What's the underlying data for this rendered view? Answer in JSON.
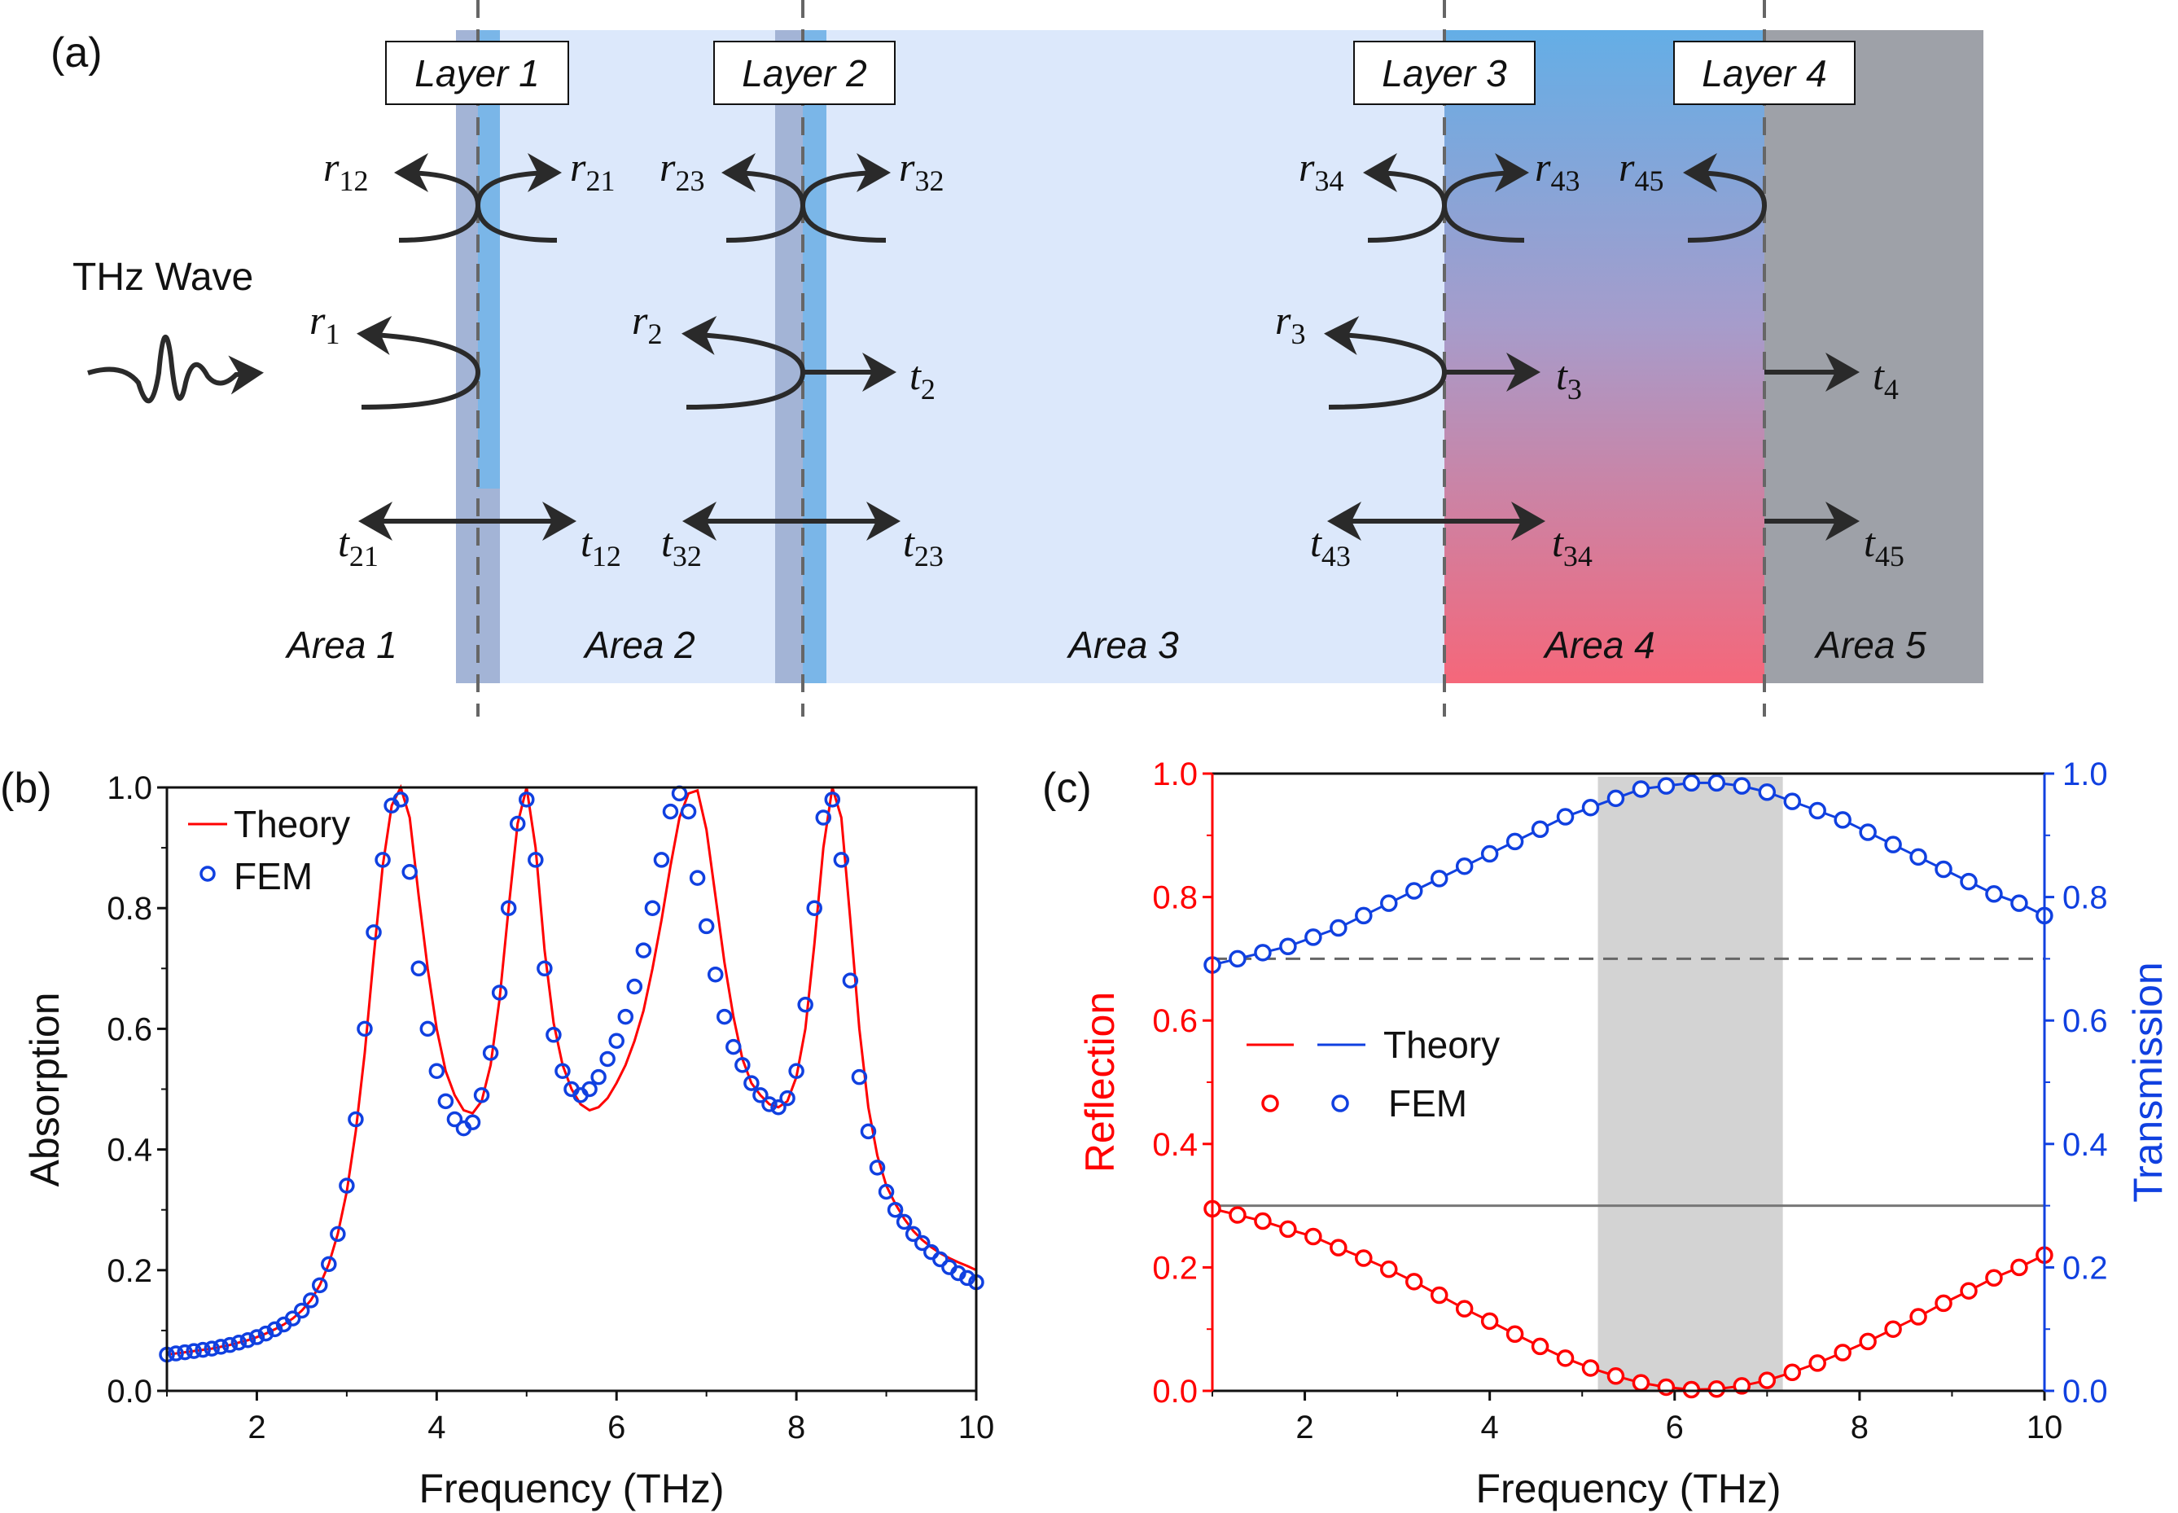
{
  "panel_a": {
    "label": "(a)",
    "wave_label": "THz Wave",
    "layers": [
      "Layer 1",
      "Layer 2",
      "Layer 3",
      "Layer 4"
    ],
    "areas": [
      "Area 1",
      "Area 2",
      "Area 3",
      "Area 4",
      "Area 5"
    ],
    "symbols": [
      {
        "b": "r",
        "s": "12"
      },
      {
        "b": "r",
        "s": "21"
      },
      {
        "b": "r",
        "s": "23"
      },
      {
        "b": "r",
        "s": "32"
      },
      {
        "b": "r",
        "s": "34"
      },
      {
        "b": "r",
        "s": "43"
      },
      {
        "b": "r",
        "s": "45"
      },
      {
        "b": "r",
        "s": "1"
      },
      {
        "b": "r",
        "s": "2"
      },
      {
        "b": "r",
        "s": "3"
      },
      {
        "b": "t",
        "s": "2"
      },
      {
        "b": "t",
        "s": "3"
      },
      {
        "b": "t",
        "s": "4"
      },
      {
        "b": "t",
        "s": "21"
      },
      {
        "b": "t",
        "s": "12"
      },
      {
        "b": "t",
        "s": "32"
      },
      {
        "b": "t",
        "s": "23"
      },
      {
        "b": "t",
        "s": "43"
      },
      {
        "b": "t",
        "s": "34"
      },
      {
        "b": "t",
        "s": "45"
      }
    ],
    "colors": {
      "area3": "#dce8fb",
      "area4_top": "#64aee6",
      "area4_bottom": "#f5677a",
      "area5": "#9ea1a8",
      "layer_gray": "#a3b4d6",
      "layer_blue": "#7ab6e8"
    }
  },
  "chart_data": [
    {
      "panel": "(b)",
      "type": "line",
      "xlabel": "Frequency (THz)",
      "ylabel": "Absorption",
      "xlim": [
        1,
        10
      ],
      "ylim": [
        0,
        1.0
      ],
      "xticks": [
        "2",
        "4",
        "6",
        "8",
        "10"
      ],
      "yticks": [
        "0.0",
        "0.2",
        "0.4",
        "0.6",
        "0.8",
        "1.0"
      ],
      "legend": "top-left",
      "x": [
        1.0,
        1.1,
        1.2,
        1.3,
        1.4,
        1.5,
        1.6,
        1.7,
        1.8,
        1.9,
        2.0,
        2.1,
        2.2,
        2.3,
        2.4,
        2.5,
        2.6,
        2.7,
        2.8,
        2.9,
        3.0,
        3.1,
        3.2,
        3.3,
        3.4,
        3.5,
        3.6,
        3.7,
        3.8,
        3.9,
        4.0,
        4.1,
        4.2,
        4.3,
        4.4,
        4.5,
        4.6,
        4.7,
        4.8,
        4.9,
        5.0,
        5.1,
        5.2,
        5.3,
        5.4,
        5.5,
        5.6,
        5.7,
        5.8,
        5.9,
        6.0,
        6.1,
        6.2,
        6.3,
        6.4,
        6.5,
        6.6,
        6.7,
        6.8,
        6.9,
        7.0,
        7.1,
        7.2,
        7.3,
        7.4,
        7.5,
        7.6,
        7.7,
        7.8,
        7.9,
        8.0,
        8.1,
        8.2,
        8.3,
        8.4,
        8.5,
        8.6,
        8.7,
        8.8,
        8.9,
        9.0,
        9.1,
        9.2,
        9.3,
        9.4,
        9.5,
        9.6,
        9.7,
        9.8,
        9.9,
        10.0
      ],
      "series": [
        {
          "name": "Theory",
          "style": "line",
          "color": "#ff0000",
          "values": [
            0.06,
            0.062,
            0.064,
            0.066,
            0.068,
            0.07,
            0.073,
            0.076,
            0.08,
            0.084,
            0.089,
            0.095,
            0.102,
            0.11,
            0.12,
            0.133,
            0.15,
            0.175,
            0.21,
            0.26,
            0.33,
            0.43,
            0.56,
            0.72,
            0.87,
            0.97,
            1.0,
            0.95,
            0.82,
            0.7,
            0.6,
            0.53,
            0.49,
            0.465,
            0.46,
            0.48,
            0.54,
            0.65,
            0.8,
            0.94,
            1.0,
            0.9,
            0.73,
            0.61,
            0.54,
            0.5,
            0.475,
            0.465,
            0.47,
            0.485,
            0.51,
            0.54,
            0.58,
            0.63,
            0.7,
            0.78,
            0.87,
            0.95,
            0.99,
            0.995,
            0.93,
            0.82,
            0.71,
            0.62,
            0.55,
            0.51,
            0.49,
            0.475,
            0.47,
            0.48,
            0.52,
            0.6,
            0.74,
            0.9,
            1.0,
            0.95,
            0.78,
            0.6,
            0.47,
            0.39,
            0.34,
            0.31,
            0.285,
            0.265,
            0.25,
            0.238,
            0.228,
            0.22,
            0.213,
            0.207,
            0.2
          ]
        },
        {
          "name": "FEM",
          "style": "marker",
          "color": "#1040e0",
          "values": [
            0.06,
            0.062,
            0.064,
            0.066,
            0.068,
            0.07,
            0.073,
            0.076,
            0.08,
            0.084,
            0.089,
            0.095,
            0.102,
            0.11,
            0.12,
            0.133,
            0.15,
            0.175,
            0.21,
            0.26,
            0.34,
            0.45,
            0.6,
            0.76,
            0.88,
            0.97,
            0.98,
            0.86,
            0.7,
            0.6,
            0.53,
            0.48,
            0.45,
            0.435,
            0.445,
            0.49,
            0.56,
            0.66,
            0.8,
            0.94,
            0.98,
            0.88,
            0.7,
            0.59,
            0.53,
            0.5,
            0.49,
            0.5,
            0.52,
            0.55,
            0.58,
            0.62,
            0.67,
            0.73,
            0.8,
            0.88,
            0.96,
            0.99,
            0.96,
            0.85,
            0.77,
            0.69,
            0.62,
            0.57,
            0.54,
            0.51,
            0.49,
            0.475,
            0.47,
            0.485,
            0.53,
            0.64,
            0.8,
            0.95,
            0.98,
            0.88,
            0.68,
            0.52,
            0.43,
            0.37,
            0.33,
            0.3,
            0.28,
            0.26,
            0.245,
            0.23,
            0.218,
            0.205,
            0.195,
            0.187,
            0.18
          ]
        }
      ]
    },
    {
      "panel": "(c)",
      "type": "line",
      "xlabel": "Frequency (THz)",
      "ylabel": "Reflection",
      "y2label": "Transmission",
      "xlim": [
        1,
        10
      ],
      "ylim": [
        0,
        1.0
      ],
      "y2lim": [
        0,
        1.0
      ],
      "xticks": [
        "2",
        "4",
        "6",
        "8",
        "10"
      ],
      "yticks": [
        "0.0",
        "0.2",
        "0.4",
        "0.6",
        "0.8",
        "1.0"
      ],
      "y2ticks": [
        "0.0",
        "0.2",
        "0.4",
        "0.6",
        "0.8",
        "1.0"
      ],
      "legend": "center-left",
      "legend_labels": [
        "Theory",
        "FEM"
      ],
      "shaded_band": [
        5.17,
        7.17
      ],
      "ref_lines": [
        {
          "y": 0.7,
          "style": "dashed"
        },
        {
          "y": 0.3,
          "style": "solid"
        }
      ],
      "x_start": 1.0,
      "x_step": 0.2727,
      "series": [
        {
          "name": "Reflection",
          "axis": "left",
          "color": "#ff0000",
          "values": [
            0.295,
            0.285,
            0.275,
            0.262,
            0.25,
            0.232,
            0.215,
            0.197,
            0.177,
            0.155,
            0.133,
            0.113,
            0.092,
            0.072,
            0.053,
            0.037,
            0.024,
            0.013,
            0.006,
            0.002,
            0.003,
            0.008,
            0.017,
            0.03,
            0.045,
            0.062,
            0.08,
            0.1,
            0.12,
            0.142,
            0.162,
            0.183,
            0.2,
            0.22
          ]
        },
        {
          "name": "Transmission",
          "axis": "right",
          "color": "#1040e0",
          "values": [
            0.69,
            0.7,
            0.71,
            0.72,
            0.735,
            0.75,
            0.77,
            0.79,
            0.81,
            0.83,
            0.85,
            0.87,
            0.89,
            0.91,
            0.93,
            0.945,
            0.96,
            0.975,
            0.98,
            0.985,
            0.985,
            0.98,
            0.97,
            0.955,
            0.94,
            0.925,
            0.905,
            0.885,
            0.865,
            0.845,
            0.825,
            0.805,
            0.79,
            0.77
          ]
        }
      ]
    }
  ]
}
